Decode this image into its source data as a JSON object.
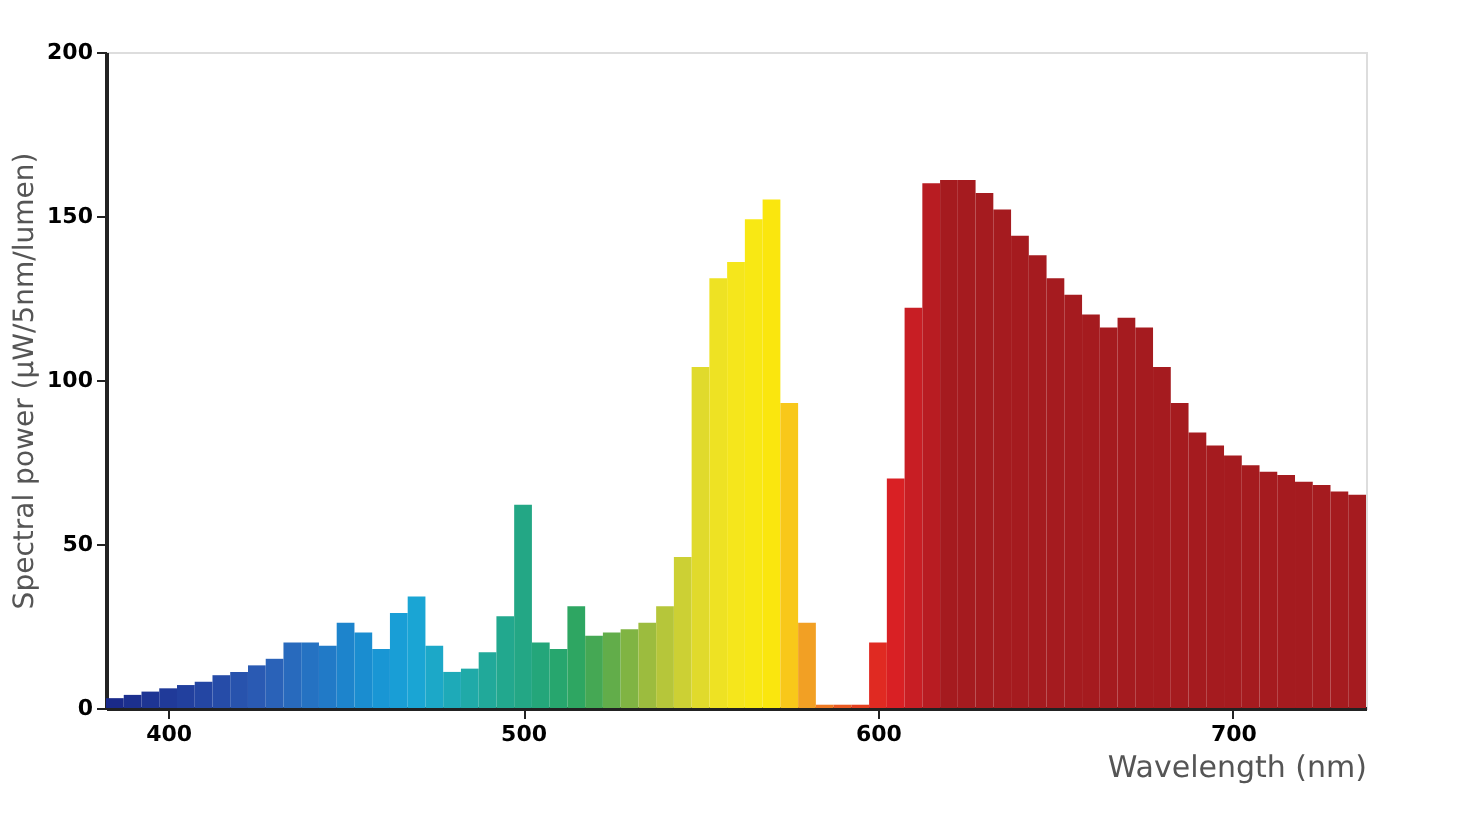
{
  "chart_data": {
    "type": "histogram",
    "xlabel": "Wavelength (nm)",
    "ylabel": "Spectral power (μW/5nm/lumen)",
    "bins": [
      382.5,
      387.5,
      392.5,
      397.5,
      402.5,
      407.5,
      412.5,
      417.5,
      422.5,
      427.5,
      432.5,
      437.5,
      442.5,
      447.5,
      452.5,
      457.5,
      462.5,
      467.5,
      472.5,
      477.5,
      482.5,
      487.5,
      492.5,
      497.5,
      502.5,
      507.5,
      512.5,
      517.5,
      522.5,
      527.5,
      532.5,
      537.5,
      542.5,
      547.5,
      552.5,
      557.5,
      562.5,
      567.5,
      572.5,
      577.5,
      582.5,
      587.5,
      592.5,
      597.5,
      602.5,
      607.5,
      612.5,
      617.5,
      622.5,
      627.5,
      632.5,
      637.5,
      642.5,
      647.5,
      652.5,
      657.5,
      662.5,
      667.5,
      672.5,
      677.5,
      682.5,
      687.5,
      692.5,
      697.5,
      702.5,
      707.5,
      712.5,
      717.5,
      722.5,
      727.5,
      732.5,
      737.5
    ],
    "values": [
      3,
      4,
      5,
      6,
      7,
      8,
      10,
      11,
      13,
      15,
      20,
      20,
      19,
      26,
      23,
      18,
      29,
      34,
      19,
      11,
      12,
      17,
      28,
      62,
      20,
      18,
      31,
      22,
      23,
      24,
      26,
      31,
      46,
      104,
      131,
      136,
      149,
      155,
      93,
      26,
      1,
      1,
      1,
      20,
      70,
      122,
      160,
      161,
      161,
      157,
      152,
      144,
      138,
      131,
      126,
      120,
      116,
      119,
      116,
      104,
      93,
      84,
      80,
      77,
      74,
      72,
      71,
      69,
      68,
      66,
      65
    ],
    "colors": [
      "#1a2a8a",
      "#1c308f",
      "#1e3594",
      "#203a99",
      "#22409e",
      "#2446a3",
      "#264ca8",
      "#2853ad",
      "#2a5ab3",
      "#2a62b8",
      "#286abd",
      "#2572c2",
      "#217ac7",
      "#1d84cc",
      "#1a8dd0",
      "#1996d4",
      "#199ed6",
      "#1aa5d4",
      "#1ca8c8",
      "#1eaab8",
      "#20aaa8",
      "#21a99a",
      "#22a88e",
      "#23a785",
      "#24a67a",
      "#27a66e",
      "#2ea662",
      "#45a854",
      "#62ad4a",
      "#80b443",
      "#9cbc3e",
      "#b6c63a",
      "#ccd034",
      "#e0da2c",
      "#eee223",
      "#f5e61c",
      "#f8e814",
      "#fae60e",
      "#f8c81a",
      "#f2a024",
      "#ee7a24",
      "#e95a22",
      "#e44020",
      "#e02a22",
      "#d92024",
      "#c81e24",
      "#b81c22",
      "#a51b1f",
      "#a51b1f",
      "#a51b1f",
      "#a51b1f",
      "#a51b1f",
      "#a51b1f",
      "#a51b1f",
      "#a51b1f",
      "#a51b1f",
      "#a51b1f",
      "#a51b1f",
      "#a51b1f",
      "#a51b1f",
      "#a51b1f",
      "#a51b1f",
      "#a51b1f",
      "#a51b1f",
      "#a51b1f",
      "#a51b1f",
      "#a51b1f",
      "#a51b1f",
      "#a51b1f",
      "#a51b1f",
      "#a51b1f"
    ],
    "xlim": [
      382.5,
      737.5
    ],
    "xticks": [
      400,
      500,
      600,
      700
    ],
    "ylim": [
      0,
      200
    ],
    "yticks": [
      0,
      50,
      100,
      150,
      200
    ],
    "grid": false
  }
}
